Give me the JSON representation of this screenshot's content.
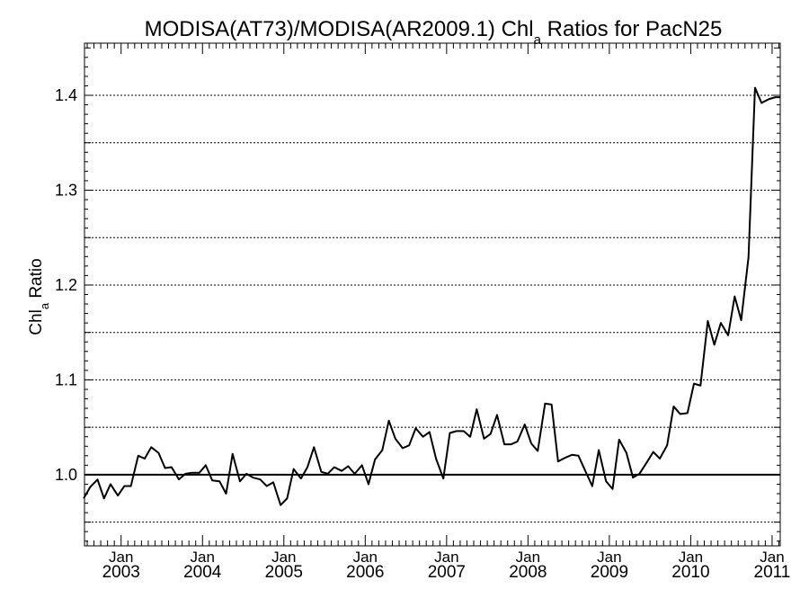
{
  "chart_data": {
    "type": "line",
    "title_prefix": "MODISA(AT73)/MODISA(AR2009.1)  Chl",
    "title_subscript": "a",
    "title_suffix": " Ratios for PacN25",
    "ylabel_main": "Chl",
    "ylabel_subscript": "a",
    "ylabel_suffix": " Ratio",
    "xlim": [
      2002.55,
      2011.1
    ],
    "ylim": [
      0.925,
      1.455
    ],
    "y_ticks": [
      1.0,
      1.1,
      1.2,
      1.3,
      1.4
    ],
    "y_tick_labels": [
      "1.0",
      "1.1",
      "1.2",
      "1.3",
      "1.4"
    ],
    "y_gridlines": [
      0.95,
      1.05,
      1.1,
      1.15,
      1.2,
      1.25,
      1.3,
      1.35,
      1.4
    ],
    "reference_line": 1.0,
    "x_ticks": [
      2003.0,
      2004.0,
      2005.0,
      2006.0,
      2007.0,
      2008.0,
      2009.0,
      2010.0,
      2011.0
    ],
    "x_tick_month": "Jan",
    "x_tick_years": [
      "2003",
      "2004",
      "2005",
      "2006",
      "2007",
      "2008",
      "2009",
      "2010",
      "2011"
    ],
    "x": [
      2002.54,
      2002.62,
      2002.71,
      2002.79,
      2002.87,
      2002.96,
      2003.04,
      2003.12,
      2003.21,
      2003.29,
      2003.37,
      2003.46,
      2003.54,
      2003.62,
      2003.71,
      2003.79,
      2003.87,
      2003.96,
      2004.04,
      2004.12,
      2004.21,
      2004.29,
      2004.37,
      2004.46,
      2004.54,
      2004.62,
      2004.71,
      2004.79,
      2004.87,
      2004.96,
      2005.04,
      2005.12,
      2005.21,
      2005.29,
      2005.37,
      2005.46,
      2005.54,
      2005.62,
      2005.71,
      2005.79,
      2005.87,
      2005.96,
      2006.04,
      2006.12,
      2006.21,
      2006.29,
      2006.37,
      2006.46,
      2006.54,
      2006.62,
      2006.71,
      2006.79,
      2006.87,
      2006.96,
      2007.04,
      2007.12,
      2007.21,
      2007.29,
      2007.37,
      2007.46,
      2007.54,
      2007.62,
      2007.71,
      2007.79,
      2007.87,
      2007.96,
      2008.04,
      2008.12,
      2008.21,
      2008.29,
      2008.37,
      2008.46,
      2008.54,
      2008.62,
      2008.71,
      2008.79,
      2008.87,
      2008.96,
      2009.04,
      2009.12,
      2009.21,
      2009.29,
      2009.37,
      2009.46,
      2009.54,
      2009.62,
      2009.71,
      2009.79,
      2009.87,
      2009.96,
      2010.04,
      2010.12,
      2010.21,
      2010.29,
      2010.37,
      2010.46,
      2010.54,
      2010.62,
      2010.71,
      2010.79,
      2010.87,
      2010.96,
      2011.04,
      2011.1
    ],
    "y": [
      0.975,
      0.987,
      0.995,
      0.975,
      0.99,
      0.978,
      0.988,
      0.988,
      1.02,
      1.017,
      1.029,
      1.023,
      1.007,
      1.008,
      0.995,
      1.001,
      1.002,
      1.002,
      1.01,
      0.994,
      0.993,
      0.98,
      1.022,
      0.993,
      1.001,
      0.997,
      0.995,
      0.988,
      0.992,
      0.968,
      0.975,
      1.006,
      0.996,
      1.008,
      1.029,
      1.003,
      1.001,
      1.008,
      1.004,
      1.009,
      1.001,
      1.01,
      0.99,
      1.016,
      1.026,
      1.057,
      1.038,
      1.028,
      1.031,
      1.049,
      1.04,
      1.045,
      1.017,
      0.996,
      1.044,
      1.046,
      1.046,
      1.04,
      1.069,
      1.038,
      1.043,
      1.063,
      1.032,
      1.032,
      1.035,
      1.053,
      1.033,
      1.025,
      1.075,
      1.074,
      1.014,
      1.018,
      1.021,
      1.02,
      1.003,
      0.988,
      1.026,
      0.993,
      0.985,
      1.037,
      1.023,
      0.997,
      1.001,
      1.013,
      1.024,
      1.017,
      1.031,
      1.072,
      1.064,
      1.065,
      1.096,
      1.094,
      1.162,
      1.137,
      1.16,
      1.147,
      1.188,
      1.163,
      1.229,
      1.408,
      1.392,
      1.396,
      1.398,
      1.398
    ]
  }
}
